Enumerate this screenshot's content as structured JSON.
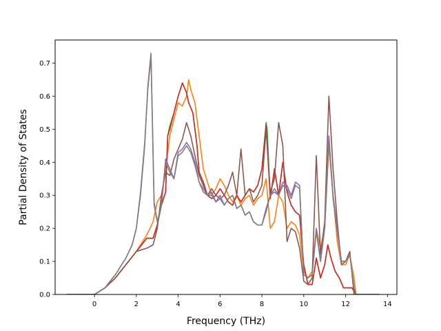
{
  "chart_data": {
    "type": "line",
    "title": "",
    "xlabel": "Frequency (THz)",
    "ylabel": "Partial Density of States",
    "xlim": [
      -1.88,
      14.45
    ],
    "ylim": [
      0.0,
      0.77
    ],
    "xticks": [
      0,
      2,
      4,
      6,
      8,
      10,
      12,
      14
    ],
    "yticks": [
      0.0,
      0.1,
      0.2,
      0.3,
      0.4,
      0.5,
      0.6,
      0.7
    ],
    "xtick_labels": [
      "0",
      "2",
      "4",
      "6",
      "8",
      "10",
      "12",
      "14"
    ],
    "ytick_labels": [
      "0.0",
      "0.1",
      "0.2",
      "0.3",
      "0.4",
      "0.5",
      "0.6",
      "0.7"
    ],
    "grid": false,
    "legend": "none",
    "series": [
      {
        "color": "#2ca02c",
        "x": [
          -1.3,
          0.0,
          0.5,
          1.0,
          1.5,
          2.0,
          2.5,
          2.8,
          3.0,
          3.2,
          3.4,
          3.5,
          3.6,
          3.8,
          4.0,
          4.2,
          4.4,
          4.5,
          4.7,
          4.9,
          5.0,
          5.2,
          5.4,
          5.6,
          5.8,
          6.0,
          6.2,
          6.4,
          6.6,
          6.8,
          7.0,
          7.2,
          7.4,
          7.6,
          7.8,
          8.0,
          8.2,
          8.25,
          8.4,
          8.6,
          8.8,
          9.0,
          9.2,
          9.4,
          9.6,
          9.8,
          10.0,
          10.2,
          10.4,
          10.6,
          10.8,
          11.0,
          11.15,
          11.3,
          11.5,
          11.7,
          11.9,
          12.1,
          12.3,
          12.5,
          13.0,
          13.6
        ],
        "y": [
          0.0,
          0.0,
          0.02,
          0.05,
          0.09,
          0.13,
          0.17,
          0.17,
          0.21,
          0.27,
          0.31,
          0.48,
          0.51,
          0.55,
          0.6,
          0.64,
          0.61,
          0.58,
          0.55,
          0.45,
          0.37,
          0.34,
          0.3,
          0.29,
          0.3,
          0.32,
          0.3,
          0.28,
          0.27,
          0.3,
          0.28,
          0.3,
          0.32,
          0.31,
          0.33,
          0.38,
          0.52,
          0.5,
          0.29,
          0.38,
          0.3,
          0.4,
          0.31,
          0.27,
          0.25,
          0.24,
          0.09,
          0.03,
          0.03,
          0.11,
          0.05,
          0.09,
          0.15,
          0.11,
          0.07,
          0.05,
          0.02,
          0.02,
          0.02,
          0.0,
          0.0,
          0.0
        ]
      },
      {
        "color": "#ff7f0e",
        "x": [
          -1.3,
          0.0,
          0.5,
          1.0,
          1.5,
          2.0,
          2.5,
          2.8,
          3.0,
          3.2,
          3.4,
          3.6,
          3.8,
          4.0,
          4.2,
          4.4,
          4.5,
          4.6,
          4.8,
          5.0,
          5.2,
          5.4,
          5.6,
          5.8,
          6.0,
          6.2,
          6.4,
          6.6,
          6.8,
          7.0,
          7.2,
          7.4,
          7.6,
          7.8,
          8.0,
          8.2,
          8.4,
          8.6,
          8.8,
          9.0,
          9.2,
          9.4,
          9.6,
          9.8,
          10.0,
          10.2,
          10.4,
          10.6,
          10.8,
          11.0,
          11.2,
          11.4,
          11.6,
          11.8,
          12.0,
          12.2,
          12.4,
          12.5,
          13.0,
          13.6
        ],
        "y": [
          0.0,
          0.0,
          0.02,
          0.05,
          0.09,
          0.13,
          0.18,
          0.22,
          0.28,
          0.3,
          0.38,
          0.48,
          0.53,
          0.58,
          0.57,
          0.6,
          0.65,
          0.62,
          0.58,
          0.48,
          0.38,
          0.34,
          0.3,
          0.32,
          0.35,
          0.33,
          0.3,
          0.28,
          0.3,
          0.27,
          0.29,
          0.3,
          0.27,
          0.29,
          0.3,
          0.35,
          0.2,
          0.22,
          0.3,
          0.28,
          0.2,
          0.22,
          0.21,
          0.18,
          0.07,
          0.05,
          0.07,
          0.2,
          0.14,
          0.2,
          0.45,
          0.3,
          0.16,
          0.09,
          0.09,
          0.12,
          0.05,
          0.0,
          0.0,
          0.0
        ]
      },
      {
        "color": "#d62728",
        "x": [
          -1.3,
          0.0,
          0.5,
          1.0,
          1.5,
          2.0,
          2.5,
          2.8,
          3.0,
          3.2,
          3.4,
          3.5,
          3.6,
          3.8,
          4.0,
          4.2,
          4.4,
          4.5,
          4.7,
          4.9,
          5.0,
          5.2,
          5.4,
          5.6,
          5.8,
          6.0,
          6.2,
          6.4,
          6.6,
          6.8,
          7.0,
          7.2,
          7.4,
          7.6,
          7.8,
          8.0,
          8.2,
          8.4,
          8.6,
          8.8,
          9.0,
          9.2,
          9.4,
          9.6,
          9.8,
          10.0,
          10.2,
          10.4,
          10.6,
          10.8,
          11.0,
          11.15,
          11.3,
          11.5,
          11.7,
          11.9,
          12.1,
          12.3,
          12.5,
          13.0,
          13.6
        ],
        "y": [
          0.0,
          0.0,
          0.02,
          0.05,
          0.09,
          0.13,
          0.17,
          0.17,
          0.21,
          0.27,
          0.31,
          0.48,
          0.5,
          0.55,
          0.6,
          0.64,
          0.61,
          0.58,
          0.55,
          0.45,
          0.37,
          0.34,
          0.3,
          0.29,
          0.3,
          0.32,
          0.3,
          0.28,
          0.27,
          0.3,
          0.28,
          0.3,
          0.32,
          0.31,
          0.33,
          0.38,
          0.51,
          0.29,
          0.38,
          0.3,
          0.4,
          0.31,
          0.27,
          0.25,
          0.24,
          0.09,
          0.03,
          0.03,
          0.11,
          0.05,
          0.09,
          0.15,
          0.11,
          0.07,
          0.05,
          0.02,
          0.02,
          0.02,
          0.0,
          0.0,
          0.0
        ]
      },
      {
        "color": "#8c564b",
        "x": [
          -1.3,
          0.0,
          0.5,
          1.0,
          1.5,
          2.0,
          2.5,
          2.8,
          3.0,
          3.2,
          3.4,
          3.6,
          3.8,
          4.0,
          4.2,
          4.4,
          4.6,
          4.8,
          5.0,
          5.2,
          5.4,
          5.6,
          5.8,
          6.0,
          6.2,
          6.4,
          6.6,
          6.8,
          7.0,
          7.2,
          7.4,
          7.6,
          7.8,
          8.0,
          8.2,
          8.4,
          8.6,
          8.8,
          9.0,
          9.2,
          9.4,
          9.6,
          9.8,
          10.0,
          10.2,
          10.4,
          10.6,
          10.8,
          11.0,
          11.2,
          11.4,
          11.6,
          11.8,
          12.0,
          12.2,
          12.4,
          12.5,
          13.0,
          13.6
        ],
        "y": [
          0.0,
          0.0,
          0.02,
          0.05,
          0.09,
          0.13,
          0.14,
          0.15,
          0.2,
          0.3,
          0.37,
          0.36,
          0.41,
          0.44,
          0.47,
          0.52,
          0.48,
          0.42,
          0.36,
          0.33,
          0.3,
          0.32,
          0.3,
          0.29,
          0.3,
          0.33,
          0.37,
          0.3,
          0.44,
          0.3,
          0.32,
          0.28,
          0.3,
          0.33,
          0.5,
          0.31,
          0.35,
          0.52,
          0.45,
          0.16,
          0.2,
          0.19,
          0.14,
          0.04,
          0.03,
          0.05,
          0.42,
          0.12,
          0.22,
          0.6,
          0.38,
          0.22,
          0.09,
          0.1,
          0.13,
          0.0,
          0.0,
          0.0,
          0.0
        ]
      },
      {
        "color": "#9467bd",
        "x": [
          -1.3,
          0.0,
          0.5,
          1.0,
          1.5,
          1.8,
          2.0,
          2.2,
          2.4,
          2.55,
          2.7,
          2.85,
          3.0,
          3.2,
          3.4,
          3.6,
          3.8,
          4.0,
          4.2,
          4.4,
          4.6,
          4.8,
          5.0,
          5.2,
          5.4,
          5.6,
          5.8,
          6.0,
          6.2,
          6.4,
          6.6,
          6.8,
          7.0,
          7.2,
          7.4,
          7.6,
          7.8,
          8.0,
          8.2,
          8.4,
          8.6,
          8.8,
          9.0,
          9.2,
          9.4,
          9.6,
          9.8,
          10.0,
          10.2,
          10.4,
          10.6,
          10.8,
          11.0,
          11.2,
          11.4,
          11.6,
          11.8,
          12.0,
          12.2,
          12.4,
          12.5,
          13.0,
          13.6
        ],
        "y": [
          0.0,
          0.0,
          0.02,
          0.06,
          0.11,
          0.15,
          0.2,
          0.3,
          0.45,
          0.63,
          0.73,
          0.28,
          0.22,
          0.27,
          0.41,
          0.38,
          0.35,
          0.43,
          0.44,
          0.46,
          0.44,
          0.4,
          0.34,
          0.32,
          0.3,
          0.31,
          0.28,
          0.3,
          0.27,
          0.29,
          0.3,
          0.26,
          0.27,
          0.24,
          0.25,
          0.22,
          0.21,
          0.21,
          0.26,
          0.3,
          0.32,
          0.3,
          0.34,
          0.33,
          0.3,
          0.34,
          0.33,
          0.06,
          0.05,
          0.06,
          0.2,
          0.1,
          0.2,
          0.48,
          0.3,
          0.2,
          0.1,
          0.1,
          0.12,
          0.02,
          0.0,
          0.0,
          0.0
        ]
      },
      {
        "color": "#7f7f7f",
        "x": [
          -1.3,
          0.0,
          0.5,
          1.0,
          1.5,
          1.8,
          2.0,
          2.2,
          2.4,
          2.55,
          2.7,
          2.85,
          3.0,
          3.2,
          3.4,
          3.6,
          3.8,
          4.0,
          4.2,
          4.4,
          4.6,
          4.8,
          5.0,
          5.2,
          5.4,
          5.6,
          5.8,
          6.0,
          6.2,
          6.4,
          6.6,
          6.8,
          7.0,
          7.2,
          7.4,
          7.6,
          7.8,
          8.0,
          8.2,
          8.4,
          8.6,
          8.8,
          9.0,
          9.2,
          9.4,
          9.6,
          9.8,
          10.0,
          10.2,
          10.4,
          10.6,
          10.8,
          11.0,
          11.2,
          11.4,
          11.6,
          11.8,
          12.0,
          12.2,
          12.4,
          12.5,
          13.0,
          13.6
        ],
        "y": [
          0.0,
          0.0,
          0.02,
          0.06,
          0.11,
          0.15,
          0.2,
          0.31,
          0.46,
          0.62,
          0.72,
          0.27,
          0.22,
          0.27,
          0.4,
          0.37,
          0.35,
          0.42,
          0.43,
          0.45,
          0.43,
          0.39,
          0.34,
          0.31,
          0.3,
          0.3,
          0.28,
          0.29,
          0.27,
          0.29,
          0.3,
          0.26,
          0.27,
          0.24,
          0.25,
          0.22,
          0.21,
          0.21,
          0.25,
          0.3,
          0.31,
          0.3,
          0.33,
          0.32,
          0.29,
          0.33,
          0.32,
          0.06,
          0.05,
          0.06,
          0.19,
          0.1,
          0.2,
          0.47,
          0.29,
          0.19,
          0.1,
          0.1,
          0.12,
          0.02,
          0.0,
          0.0,
          0.0
        ]
      }
    ]
  }
}
